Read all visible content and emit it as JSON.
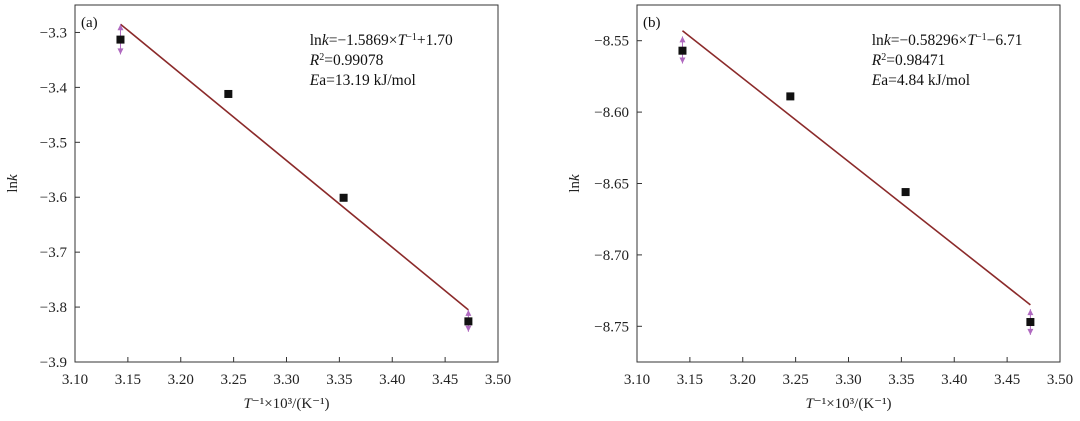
{
  "chart_data": [
    {
      "type": "scatter",
      "panel": "(a)",
      "xlabel": "T⁻¹×10³/(K⁻¹)",
      "xlabel_parts": {
        "var": "T",
        "rest": "⁻¹×10³/(K⁻¹)"
      },
      "ylabel": "lnk",
      "ylabel_parts": {
        "pre": "ln",
        "var": "k"
      },
      "xlim": [
        3.1,
        3.5
      ],
      "ylim": [
        -3.9,
        -3.25
      ],
      "x_ticks": [
        3.1,
        3.15,
        3.2,
        3.25,
        3.3,
        3.35,
        3.4,
        3.45,
        3.5
      ],
      "x_tick_labels": [
        "3.10",
        "3.15",
        "3.20",
        "3.25",
        "3.30",
        "3.35",
        "3.40",
        "3.45",
        "3.50"
      ],
      "y_ticks": [
        -3.3,
        -3.4,
        -3.5,
        -3.6,
        -3.7,
        -3.8,
        -3.9
      ],
      "y_tick_labels": [
        "−3.3",
        "−3.4",
        "−3.5",
        "−3.6",
        "−3.7",
        "−3.8",
        "−3.9"
      ],
      "points": {
        "x": [
          3.143,
          3.245,
          3.354,
          3.472
        ],
        "y": [
          -3.313,
          -3.412,
          -3.601,
          -3.826
        ]
      },
      "fit_line": {
        "x": [
          3.143,
          3.472
        ],
        "y": [
          -3.285,
          -3.805
        ],
        "color": "#8b2a2a"
      },
      "error_markers": [
        {
          "x": 3.143,
          "y_top": -3.285,
          "y_bottom": -3.34
        },
        {
          "x": 3.472,
          "y_top": -3.805,
          "y_bottom": -3.845
        }
      ],
      "marker_color": "#111111",
      "error_color": "#b06ac0",
      "annotation": {
        "line1": {
          "pre": "ln",
          "var1": "k",
          "mid": "=−1.5869×",
          "var2": "T",
          "sup": "−1",
          "post": "+1.70"
        },
        "line2": {
          "var": "R",
          "sup": "2",
          "post": "=0.99078"
        },
        "line3": {
          "var": "E",
          "post": "a=13.19 kJ/mol"
        }
      }
    },
    {
      "type": "scatter",
      "panel": "(b)",
      "xlabel": "T⁻¹×10³/(K⁻¹)",
      "xlabel_parts": {
        "var": "T",
        "rest": "⁻¹×10³/(K⁻¹)"
      },
      "ylabel": "lnk",
      "ylabel_parts": {
        "pre": "ln",
        "var": "k"
      },
      "xlim": [
        3.1,
        3.5
      ],
      "ylim": [
        -8.775,
        -8.525
      ],
      "x_ticks": [
        3.1,
        3.15,
        3.2,
        3.25,
        3.3,
        3.35,
        3.4,
        3.45,
        3.5
      ],
      "x_tick_labels": [
        "3.10",
        "3.15",
        "3.20",
        "3.25",
        "3.30",
        "3.35",
        "3.40",
        "3.45",
        "3.50"
      ],
      "y_ticks": [
        -8.55,
        -8.6,
        -8.65,
        -8.7,
        -8.75
      ],
      "y_tick_labels": [
        "−8.55",
        "−8.60",
        "−8.65",
        "−8.70",
        "−8.75"
      ],
      "points": {
        "x": [
          3.143,
          3.245,
          3.354,
          3.472
        ],
        "y": [
          -8.557,
          -8.589,
          -8.656,
          -8.747
        ]
      },
      "fit_line": {
        "x": [
          3.143,
          3.472
        ],
        "y": [
          -8.543,
          -8.735
        ],
        "color": "#8b2a2a"
      },
      "error_markers": [
        {
          "x": 3.143,
          "y_top": -8.547,
          "y_bottom": -8.566
        },
        {
          "x": 3.472,
          "y_top": -8.738,
          "y_bottom": -8.756
        }
      ],
      "marker_color": "#111111",
      "error_color": "#b06ac0",
      "annotation": {
        "line1": {
          "pre": "ln",
          "var1": "k",
          "mid": "=−0.58296×",
          "var2": "T",
          "sup": "−1",
          "post": "−6.71"
        },
        "line2": {
          "var": "R",
          "sup": "2",
          "post": "=0.98471"
        },
        "line3": {
          "var": "E",
          "post": "a=4.84 kJ/mol"
        }
      }
    }
  ]
}
